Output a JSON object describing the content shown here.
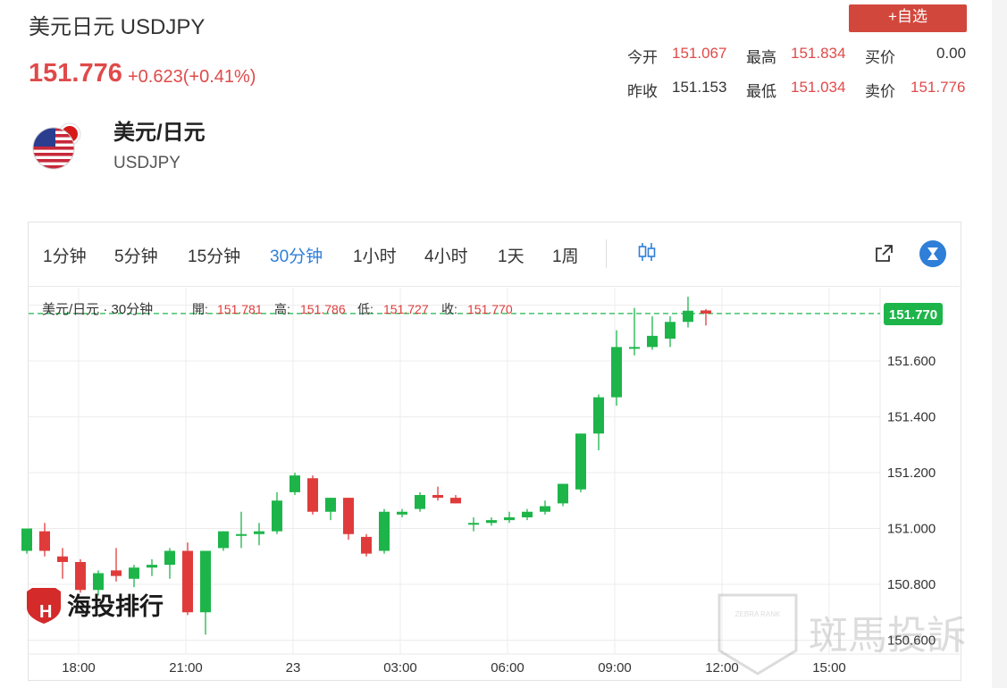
{
  "header": {
    "title": "美元日元 USDJPY",
    "price": "151.776",
    "change": "+0.623(+0.41%)",
    "add_button": "+自选"
  },
  "stats": {
    "open_label": "今开",
    "open": "151.067",
    "high_label": "最高",
    "high": "151.834",
    "bid_label": "买价",
    "bid": "0.00",
    "prev_close_label": "昨收",
    "prev_close": "151.153",
    "low_label": "最低",
    "low": "151.034",
    "ask_label": "卖价",
    "ask": "151.776"
  },
  "pair": {
    "name": "美元/日元",
    "code": "USDJPY"
  },
  "timeframes": [
    "1分钟",
    "5分钟",
    "15分钟",
    "30分钟",
    "1小时",
    "4小时",
    "1天",
    "1周"
  ],
  "active_timeframe": "30分钟",
  "legend": {
    "symbol": "美元/日元 · 30分钟",
    "open_label": "開:",
    "open": "151.781",
    "high_label": "高:",
    "high": "151.786",
    "low_label": "低:",
    "low": "151.727",
    "close_label": "收:",
    "close": "151.770"
  },
  "watermark_left": "海投排行",
  "watermark_right": "斑馬投訴",
  "watermark_badge": "ZEBRA RANK",
  "colors": {
    "up": "#1db54a",
    "down": "#e03b3b",
    "accent": "#2f7ed8"
  },
  "chart_data": {
    "type": "candlestick",
    "x_tick_labels": [
      "18:00",
      "21:00",
      "23",
      "03:00",
      "06:00",
      "09:00",
      "12:00",
      "15:00"
    ],
    "y_tick_labels": [
      "151.600",
      "151.400",
      "151.200",
      "151.000",
      "150.800",
      "150.600"
    ],
    "ylim": [
      150.56,
      151.86
    ],
    "last_price_label": "151.770",
    "last_price": 151.77,
    "candles": [
      {
        "o": 150.92,
        "h": 151.0,
        "l": 150.91,
        "c": 151.0
      },
      {
        "o": 150.99,
        "h": 151.02,
        "l": 150.9,
        "c": 150.92
      },
      {
        "o": 150.9,
        "h": 150.93,
        "l": 150.82,
        "c": 150.88
      },
      {
        "o": 150.88,
        "h": 150.89,
        "l": 150.77,
        "c": 150.78
      },
      {
        "o": 150.78,
        "h": 150.85,
        "l": 150.76,
        "c": 150.84
      },
      {
        "o": 150.85,
        "h": 150.93,
        "l": 150.81,
        "c": 150.83
      },
      {
        "o": 150.82,
        "h": 150.87,
        "l": 150.79,
        "c": 150.86
      },
      {
        "o": 150.86,
        "h": 150.89,
        "l": 150.83,
        "c": 150.87
      },
      {
        "o": 150.87,
        "h": 150.93,
        "l": 150.82,
        "c": 150.92
      },
      {
        "o": 150.92,
        "h": 150.95,
        "l": 150.69,
        "c": 150.7
      },
      {
        "o": 150.7,
        "h": 150.92,
        "l": 150.62,
        "c": 150.92
      },
      {
        "o": 150.93,
        "h": 150.99,
        "l": 150.92,
        "c": 150.99
      },
      {
        "o": 150.98,
        "h": 151.06,
        "l": 150.93,
        "c": 150.98
      },
      {
        "o": 150.98,
        "h": 151.02,
        "l": 150.94,
        "c": 150.99
      },
      {
        "o": 150.99,
        "h": 151.13,
        "l": 150.98,
        "c": 151.1
      },
      {
        "o": 151.13,
        "h": 151.2,
        "l": 151.12,
        "c": 151.19
      },
      {
        "o": 151.18,
        "h": 151.19,
        "l": 151.05,
        "c": 151.06
      },
      {
        "o": 151.06,
        "h": 151.11,
        "l": 151.03,
        "c": 151.11
      },
      {
        "o": 151.11,
        "h": 151.11,
        "l": 150.96,
        "c": 150.98
      },
      {
        "o": 150.97,
        "h": 150.98,
        "l": 150.9,
        "c": 150.91
      },
      {
        "o": 150.92,
        "h": 151.07,
        "l": 150.91,
        "c": 151.06
      },
      {
        "o": 151.05,
        "h": 151.07,
        "l": 151.04,
        "c": 151.06
      },
      {
        "o": 151.07,
        "h": 151.13,
        "l": 151.06,
        "c": 151.12
      },
      {
        "o": 151.12,
        "h": 151.15,
        "l": 151.1,
        "c": 151.11
      },
      {
        "o": 151.11,
        "h": 151.12,
        "l": 151.09,
        "c": 151.09
      },
      {
        "o": 151.02,
        "h": 151.04,
        "l": 150.99,
        "c": 151.02
      },
      {
        "o": 151.02,
        "h": 151.04,
        "l": 151.01,
        "c": 151.03
      },
      {
        "o": 151.03,
        "h": 151.06,
        "l": 151.02,
        "c": 151.04
      },
      {
        "o": 151.04,
        "h": 151.07,
        "l": 151.03,
        "c": 151.06
      },
      {
        "o": 151.06,
        "h": 151.1,
        "l": 151.05,
        "c": 151.08
      },
      {
        "o": 151.09,
        "h": 151.16,
        "l": 151.08,
        "c": 151.16
      },
      {
        "o": 151.14,
        "h": 151.34,
        "l": 151.13,
        "c": 151.34
      },
      {
        "o": 151.34,
        "h": 151.48,
        "l": 151.28,
        "c": 151.47
      },
      {
        "o": 151.47,
        "h": 151.71,
        "l": 151.44,
        "c": 151.65
      },
      {
        "o": 151.65,
        "h": 151.79,
        "l": 151.62,
        "c": 151.65
      },
      {
        "o": 151.65,
        "h": 151.76,
        "l": 151.64,
        "c": 151.69
      },
      {
        "o": 151.68,
        "h": 151.76,
        "l": 151.65,
        "c": 151.74
      },
      {
        "o": 151.74,
        "h": 151.83,
        "l": 151.72,
        "c": 151.78
      },
      {
        "o": 151.781,
        "h": 151.786,
        "l": 151.727,
        "c": 151.77
      }
    ]
  }
}
